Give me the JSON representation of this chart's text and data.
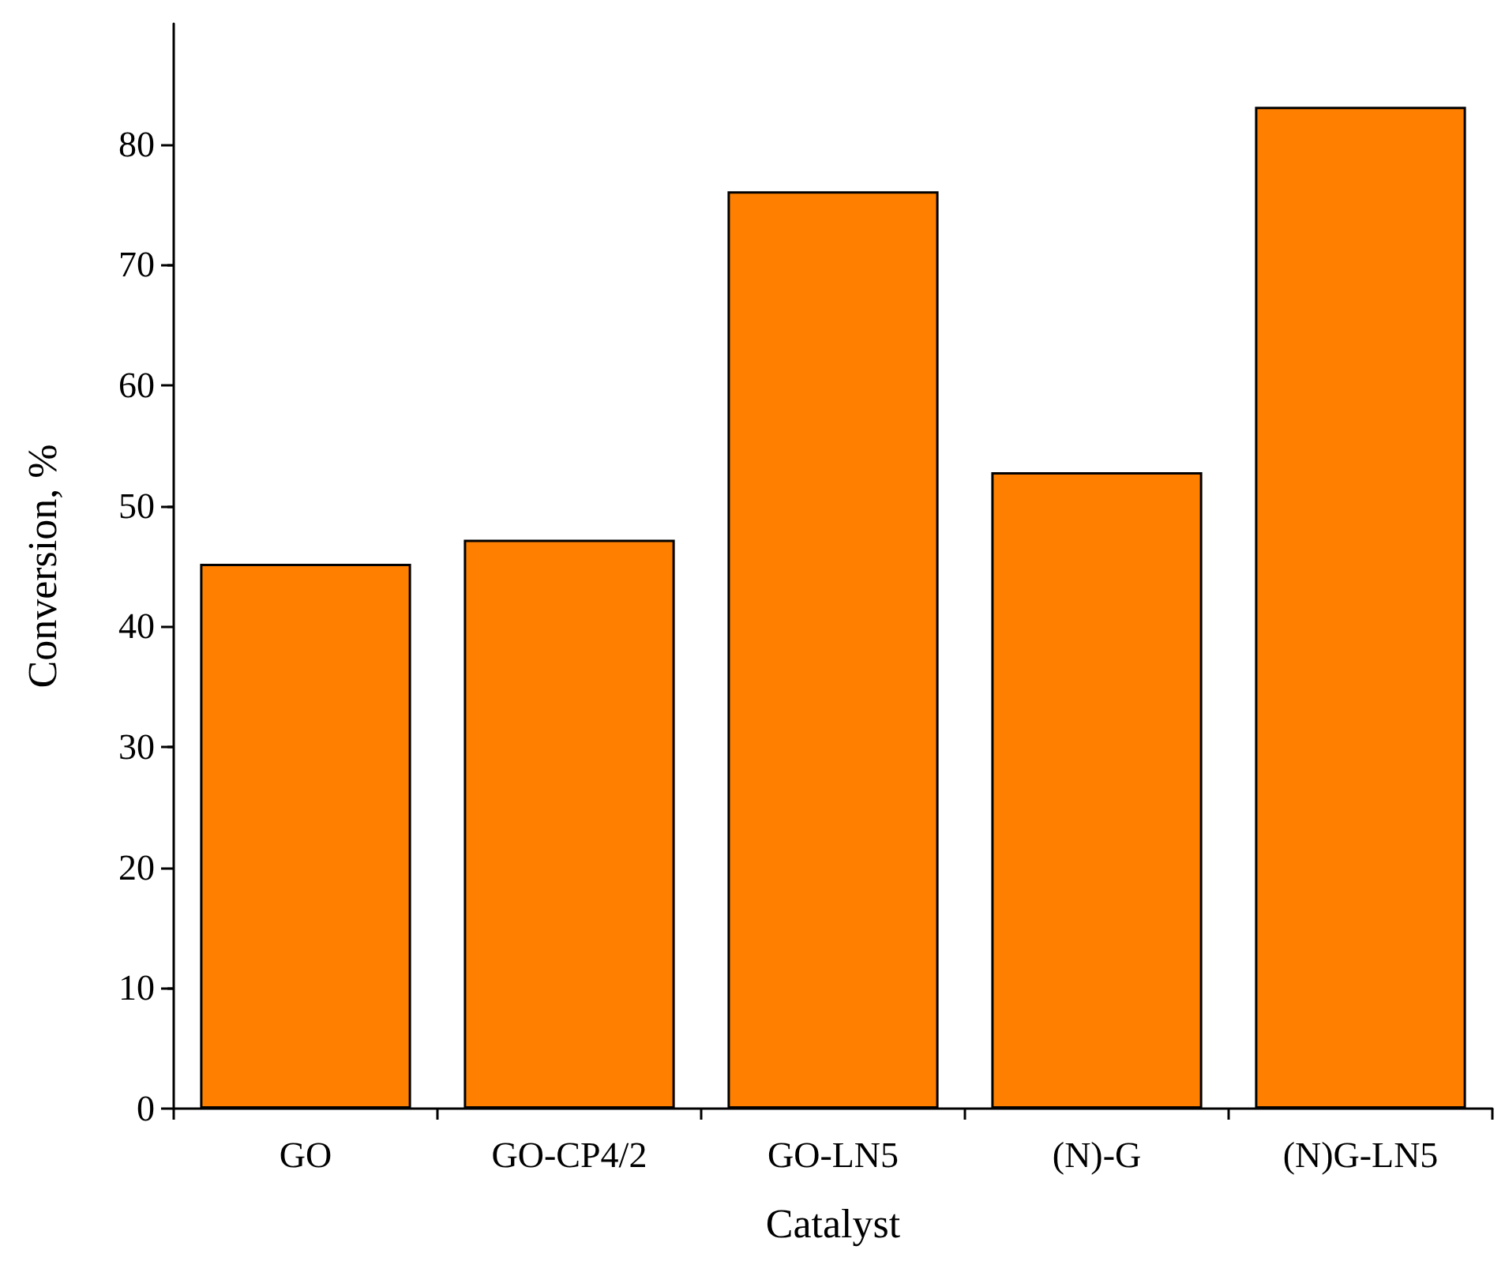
{
  "chart_data": {
    "type": "bar",
    "xlabel": "Catalyst",
    "ylabel": "Conversion, %",
    "categories": [
      "GO",
      "GO-CP4/2",
      "GO-LN5",
      "(N)-G",
      "(N)G-LN5"
    ],
    "values": [
      45.2,
      47.2,
      76.1,
      52.8,
      83.1
    ],
    "color": "#ff8000",
    "ylim": [
      0,
      90
    ],
    "yticks": [
      0,
      10,
      20,
      30,
      40,
      50,
      60,
      70,
      80
    ],
    "grid": false
  }
}
